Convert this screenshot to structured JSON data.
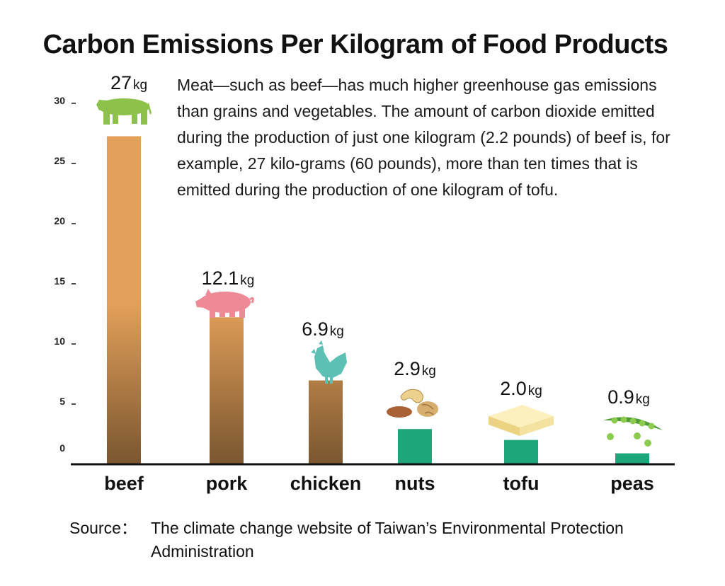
{
  "chart_data": {
    "type": "bar",
    "title": "Carbon Emissions Per Kilogram of Food Products",
    "annotation": "Meat—such as beef—has much higher greenhouse gas emissions than grains and vegetables. The amount of carbon dioxide emitted during the production of just one kilogram (2.2 pounds) of beef is, for example, 27 kilo-grams (60 pounds), more than ten times that is emitted during the production of one kilogram of tofu.",
    "categories": [
      "beef",
      "pork",
      "chicken",
      "nuts",
      "tofu",
      "peas"
    ],
    "values": [
      27,
      12.1,
      6.9,
      2.9,
      2.0,
      0.9
    ],
    "value_labels": [
      "27",
      "12.1",
      "6.9",
      "2.9",
      "2.0",
      "0.9"
    ],
    "unit": "kg",
    "yticks": [
      0,
      5,
      10,
      15,
      20,
      25,
      30
    ],
    "ylim": [
      0,
      30
    ],
    "grid": false,
    "icons": [
      "cow-icon",
      "pig-icon",
      "chicken-icon",
      "nuts-icon",
      "tofu-icon",
      "peas-icon"
    ],
    "colors": {
      "meat_top": "#E3A05A",
      "meat_bottom": "#7A5630",
      "plant": "#1DA57C",
      "cow": "#8DC24A",
      "pig": "#EE8A95",
      "chicken": "#5CC1B4",
      "tofu": "#F4E3A0",
      "peas": "#7DC241",
      "axis": "#111111"
    }
  },
  "source": {
    "label": "Source：",
    "text": "The climate change website of Taiwan’s Environmental Protection Administration"
  }
}
